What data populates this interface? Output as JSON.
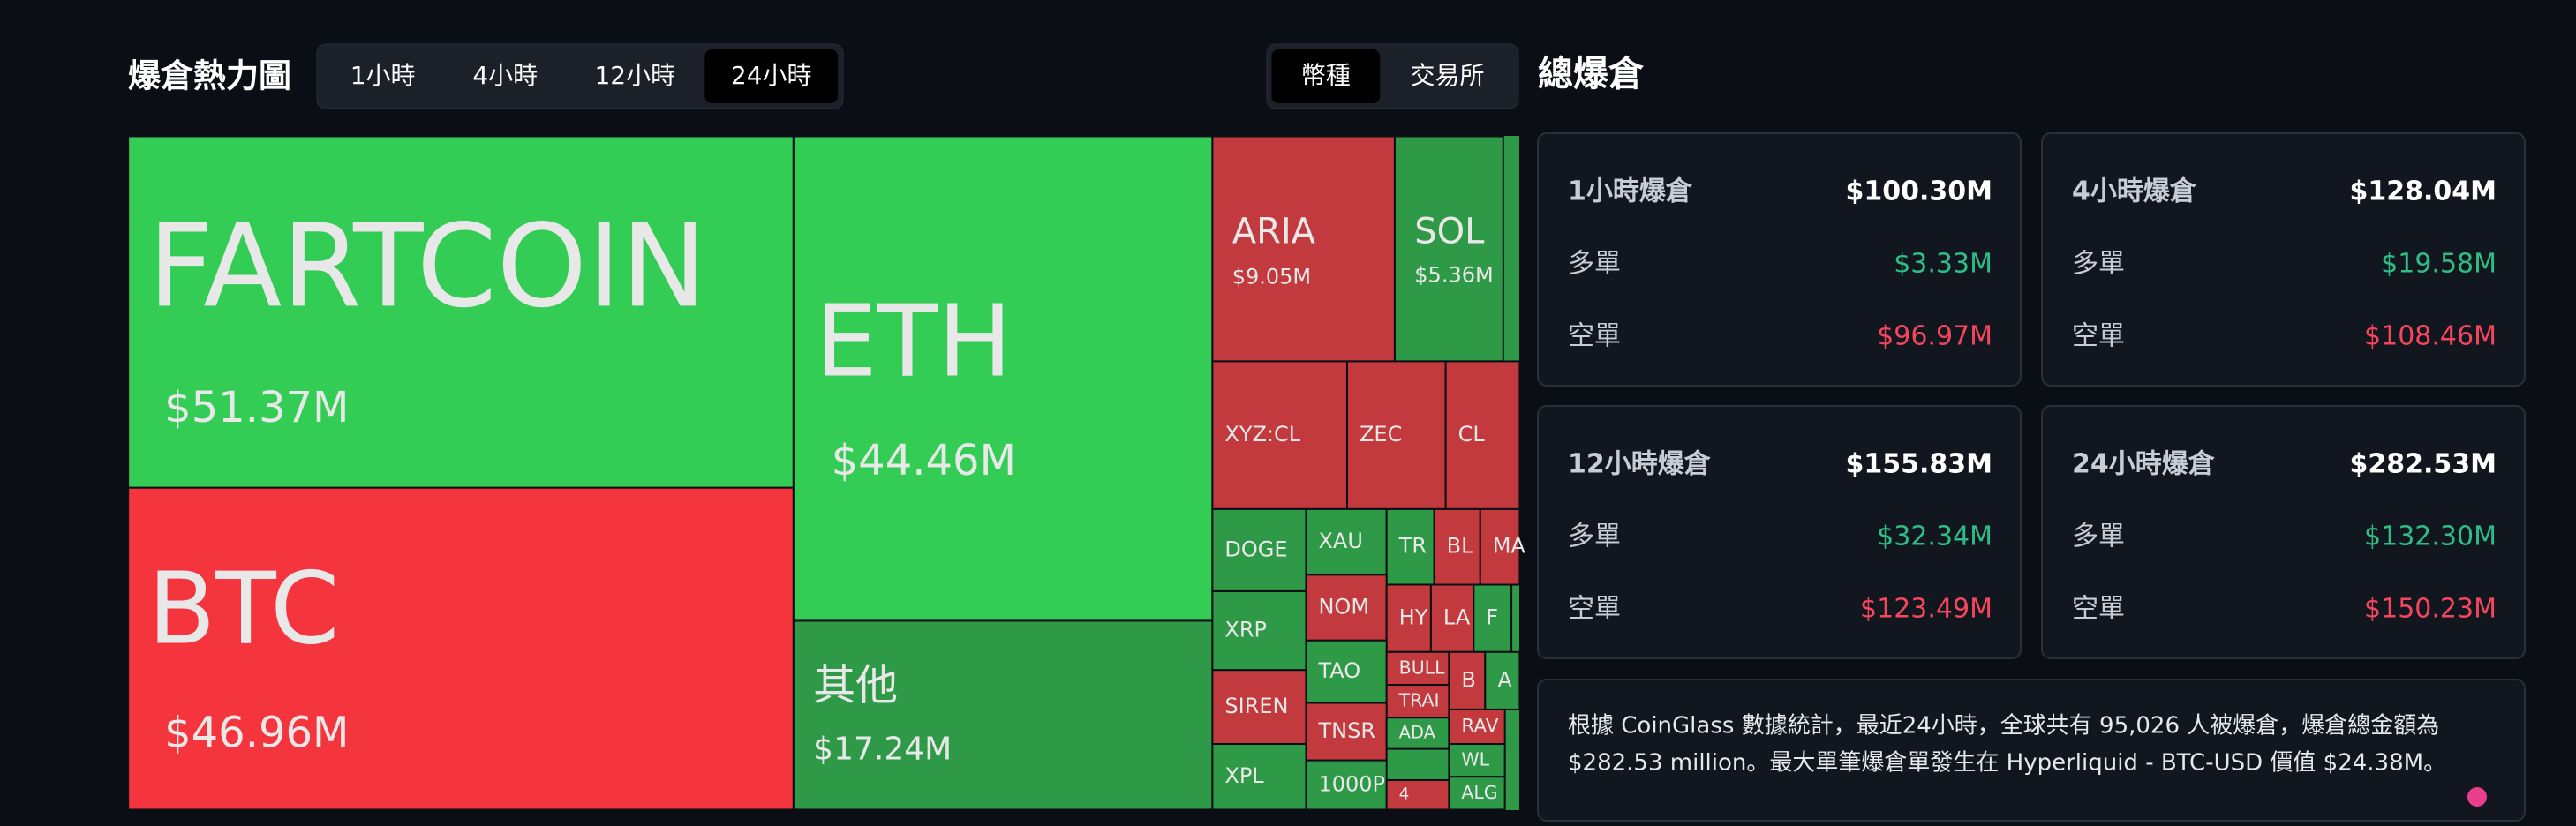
{
  "header": {
    "title": "爆倉熱力圖",
    "tabs": [
      "1小時",
      "4小時",
      "12小時",
      "24小時"
    ],
    "active_tab": 3,
    "toggle": [
      "幣種",
      "交易所"
    ],
    "active_toggle": 0,
    "summary_title": "總爆倉"
  },
  "treemap": {
    "tiles": [
      {
        "label": "FARTCOIN",
        "value": "$51.37M",
        "color": "#33cc55"
      },
      {
        "label": "BTC",
        "value": "$46.96M",
        "color": "#f5353d"
      },
      {
        "label": "ETH",
        "value": "$44.46M",
        "color": "#33cc55"
      },
      {
        "label": "其他",
        "value": "$17.24M",
        "color": "#2e9a48"
      },
      {
        "label": "ARIA",
        "value": "$9.05M",
        "color": "#c23a3e"
      },
      {
        "label": "SOL",
        "value": "$5.36M",
        "color": "#2e9a48"
      },
      {
        "label": "XYZ:CL",
        "color": "#c23a3e"
      },
      {
        "label": "ZEC",
        "color": "#c23a3e"
      },
      {
        "label": "CL",
        "color": "#c23a3e"
      },
      {
        "label": "DOGE",
        "color": "#2e9a48"
      },
      {
        "label": "XAU",
        "color": "#2e9a48"
      },
      {
        "label": "TR",
        "color": "#2e9a48"
      },
      {
        "label": "BL",
        "color": "#c23a3e"
      },
      {
        "label": "MA",
        "color": "#c23a3e"
      },
      {
        "label": "XRP",
        "color": "#2e9a48"
      },
      {
        "label": "NOM",
        "color": "#c23a3e"
      },
      {
        "label": "HY",
        "color": "#c23a3e"
      },
      {
        "label": "LA",
        "color": "#c23a3e"
      },
      {
        "label": "F",
        "color": "#2e9a48"
      },
      {
        "label": "TAO",
        "color": "#2e9a48"
      },
      {
        "label": "BULL",
        "color": "#c23a3e"
      },
      {
        "label": "B",
        "color": "#c23a3e"
      },
      {
        "label": "A",
        "color": "#2e9a48"
      },
      {
        "label": "SIREN",
        "color": "#c23a3e"
      },
      {
        "label": "TRAI",
        "color": "#c23a3e"
      },
      {
        "label": "TNSR",
        "color": "#c23a3e"
      },
      {
        "label": "ADA",
        "color": "#2e9a48"
      },
      {
        "label": "RAV",
        "color": "#c23a3e"
      },
      {
        "label": "XPL",
        "color": "#2e9a48"
      },
      {
        "label": "1000P",
        "color": "#2e9a48"
      },
      {
        "label": "WL",
        "color": "#2e9a48"
      },
      {
        "label": "ALG",
        "color": "#2e9a48"
      },
      {
        "label": "4",
        "color": "#c23a3e"
      }
    ]
  },
  "cards": [
    {
      "title": "1小時爆倉",
      "total": "$100.30M",
      "long_label": "多單",
      "long": "$3.33M",
      "short_label": "空單",
      "short": "$96.97M"
    },
    {
      "title": "4小時爆倉",
      "total": "$128.04M",
      "long_label": "多單",
      "long": "$19.58M",
      "short_label": "空單",
      "short": "$108.46M"
    },
    {
      "title": "12小時爆倉",
      "total": "$155.83M",
      "long_label": "多單",
      "long": "$32.34M",
      "short_label": "空單",
      "short": "$123.49M"
    },
    {
      "title": "24小時爆倉",
      "total": "$282.53M",
      "long_label": "多單",
      "long": "$132.30M",
      "short_label": "空單",
      "short": "$150.23M"
    }
  ],
  "note": {
    "lines": [
      "根據 CoinGlass 數據統計，最近24小時，全球共有 95,026 人被爆倉，爆倉總金額為",
      "$282.53 million。最大單筆爆倉單發生在 Hyperliquid - BTC-USD 價值 $24.38M。"
    ]
  }
}
